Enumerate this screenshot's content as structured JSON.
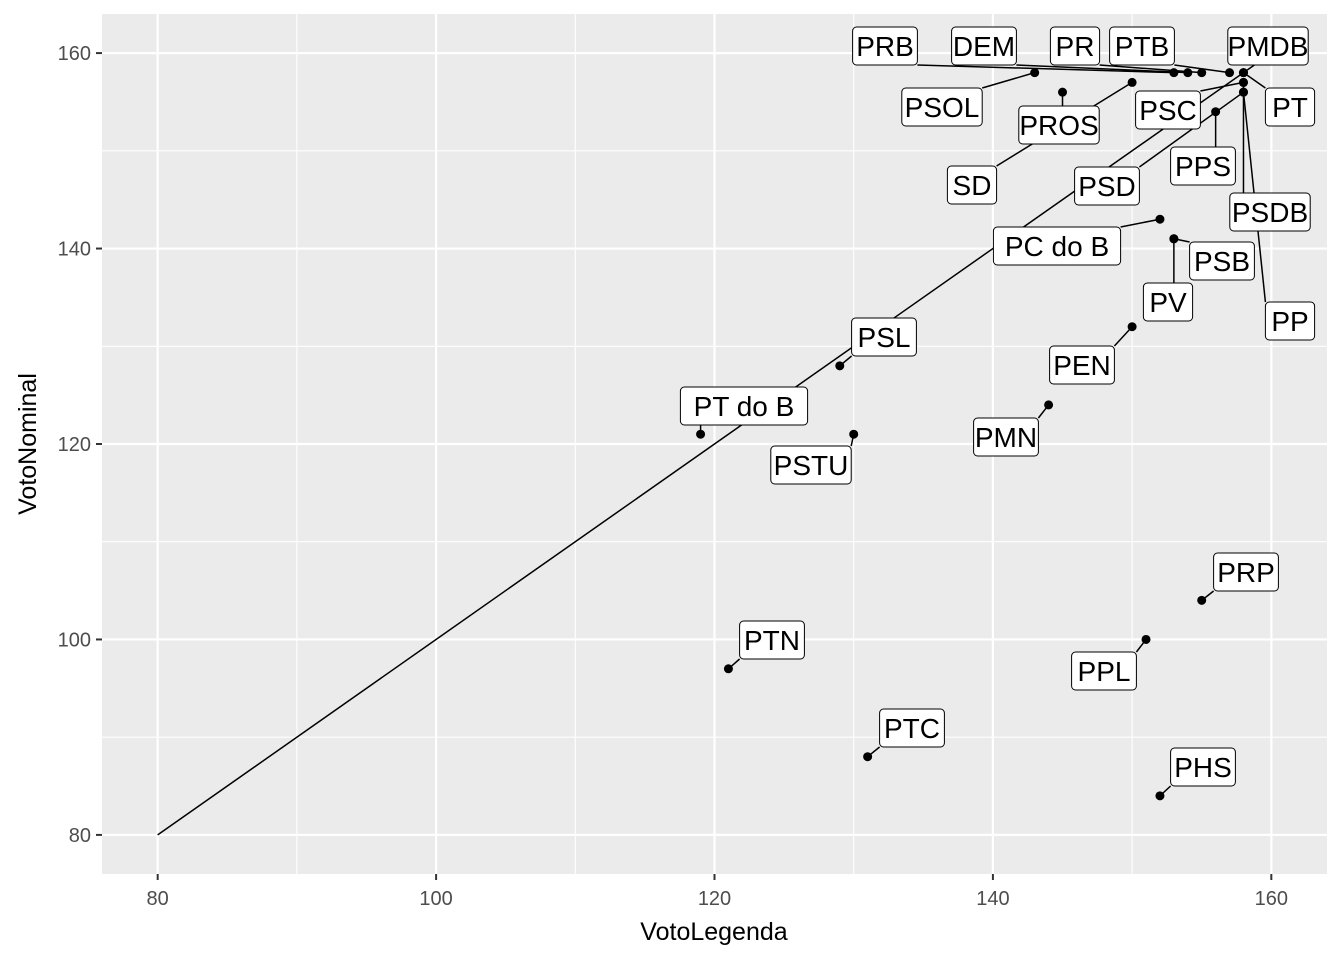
{
  "chart_data": {
    "type": "scatter",
    "xlabel": "VotoLegenda",
    "ylabel": "VotoNominal",
    "xlim": [
      76,
      164
    ],
    "ylim": [
      76,
      164
    ],
    "x_ticks": [
      80,
      100,
      120,
      140,
      160
    ],
    "y_ticks": [
      80,
      100,
      120,
      140,
      160
    ],
    "grid": true,
    "reference_line": {
      "from": [
        80,
        80
      ],
      "to": [
        160,
        160
      ]
    },
    "points": [
      {
        "label": "PRB",
        "x": 153,
        "y": 158
      },
      {
        "label": "DEM",
        "x": 154,
        "y": 158
      },
      {
        "label": "PR",
        "x": 155,
        "y": 158
      },
      {
        "label": "PTB",
        "x": 157,
        "y": 158
      },
      {
        "label": "PMDB",
        "x": 158,
        "y": 158
      },
      {
        "label": "PT",
        "x": 158,
        "y": 158
      },
      {
        "label": "PSOL",
        "x": 143,
        "y": 158
      },
      {
        "label": "PROS",
        "x": 145,
        "y": 156
      },
      {
        "label": "PSC",
        "x": 158,
        "y": 157
      },
      {
        "label": "SD",
        "x": 150,
        "y": 157
      },
      {
        "label": "PPS",
        "x": 156,
        "y": 154
      },
      {
        "label": "PSD",
        "x": 158,
        "y": 156
      },
      {
        "label": "PSDB",
        "x": 158,
        "y": 157
      },
      {
        "label": "PP",
        "x": 158,
        "y": 156
      },
      {
        "label": "PC do B",
        "x": 152,
        "y": 143
      },
      {
        "label": "PSB",
        "x": 153,
        "y": 141
      },
      {
        "label": "PV",
        "x": 153,
        "y": 141
      },
      {
        "label": "PEN",
        "x": 150,
        "y": 132
      },
      {
        "label": "PMN",
        "x": 144,
        "y": 124
      },
      {
        "label": "PSL",
        "x": 129,
        "y": 128
      },
      {
        "label": "PT do B",
        "x": 119,
        "y": 121
      },
      {
        "label": "PSTU",
        "x": 130,
        "y": 121
      },
      {
        "label": "PRP",
        "x": 155,
        "y": 104
      },
      {
        "label": "PPL",
        "x": 151,
        "y": 100
      },
      {
        "label": "PTN",
        "x": 121,
        "y": 97
      },
      {
        "label": "PTC",
        "x": 131,
        "y": 88
      },
      {
        "label": "PHS",
        "x": 152,
        "y": 84
      }
    ]
  }
}
